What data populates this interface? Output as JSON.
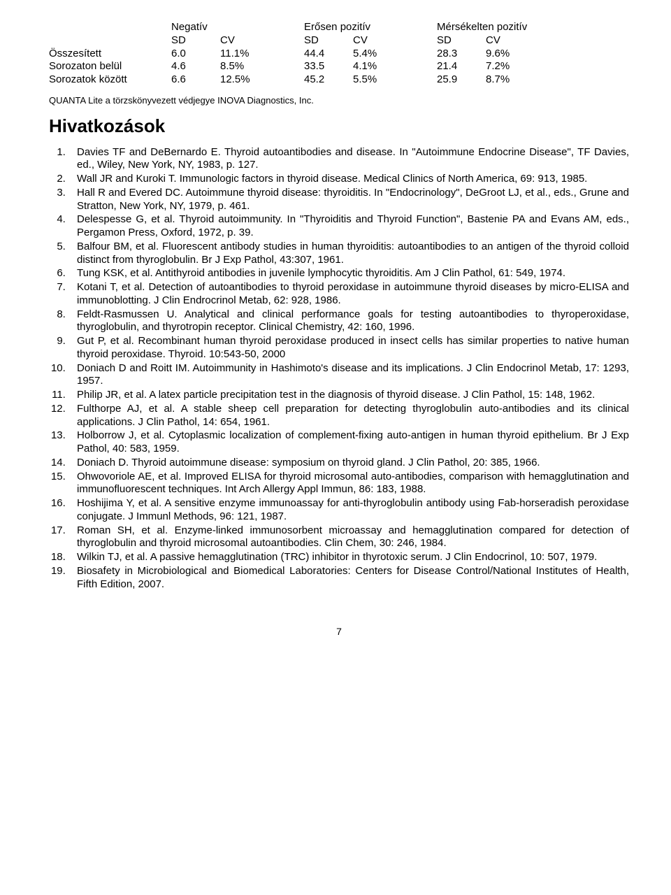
{
  "table": {
    "header_groups": [
      "Negatív",
      "Erősen pozitív",
      "Mérsékelten pozitív"
    ],
    "subheaders": [
      "SD",
      "CV",
      "SD",
      "CV",
      "SD",
      "CV"
    ],
    "rows": [
      {
        "label": "Összesített",
        "c": [
          "6.0",
          "11.1%",
          "44.4",
          "5.4%",
          "28.3",
          "9.6%"
        ]
      },
      {
        "label": "Sorozaton belül",
        "c": [
          "4.6",
          "8.5%",
          "33.5",
          "4.1%",
          "21.4",
          "7.2%"
        ]
      },
      {
        "label": "Sorozatok között",
        "c": [
          "6.6",
          "12.5%",
          "45.2",
          "5.5%",
          "25.9",
          "8.7%"
        ]
      }
    ]
  },
  "trademark": "QUANTA Lite a törzskönyvezett védjegye INOVA Diagnostics, Inc.",
  "refs_title": "Hivatkozások",
  "references": [
    "Davies TF and DeBernardo E. Thyroid autoantibodies and disease. In \"Autoimmune Endocrine Disease\", TF Davies, ed., Wiley, New York, NY, 1983, p. 127.",
    "Wall JR and Kuroki T. Immunologic factors in thyroid disease. Medical Clinics of North America, 69: 913, 1985.",
    "Hall R and Evered DC. Autoimmune thyroid disease: thyroiditis. In \"Endocrinology\", DeGroot LJ, et al., eds., Grune and Stratton, New York, NY, 1979, p. 461.",
    "Delespesse G, et al. Thyroid autoimmunity. In \"Thyroiditis and Thyroid Function\", Bastenie PA and Evans AM, eds., Pergamon Press, Oxford, 1972, p. 39.",
    "Balfour BM, et al. Fluorescent antibody studies in human thyroiditis: autoantibodies to an antigen of the thyroid colloid distinct from thyroglobulin. Br J Exp Pathol, 43:307, 1961.",
    "Tung KSK, et al. Antithyroid antibodies in juvenile lymphocytic thyroiditis. Am J Clin Pathol, 61: 549, 1974.",
    "Kotani T, et al. Detection of autoantibodies to thyroid peroxidase in autoimmune thyroid diseases by micro-ELISA and immunoblotting. J Clin Endrocrinol Metab, 62: 928, 1986.",
    "Feldt-Rasmussen U. Analytical and clinical performance goals for testing autoantibodies to thyroperoxidase, thyroglobulin, and thyrotropin receptor. Clinical Chemistry, 42: 160, 1996.",
    "Gut P, et al. Recombinant human thyroid peroxidase produced in insect cells has similar properties to native human thyroid peroxidase. Thyroid. 10:543-50, 2000",
    "Doniach D and Roitt IM. Autoimmunity in Hashimoto's disease and its implications. J Clin Endocrinol Metab, 17: 1293, 1957.",
    "Philip JR, et al. A latex particle precipitation test in the diagnosis of thyroid disease. J Clin Pathol, 15: 148, 1962.",
    "Fulthorpe AJ, et al. A stable sheep cell preparation for detecting thyroglobulin auto-antibodies and its clinical applications. J Clin Pathol, 14: 654, 1961.",
    "Holborrow J, et al. Cytoplasmic localization of complement-fixing auto-antigen in human thyroid epithelium. Br J Exp Pathol, 40: 583, 1959.",
    "Doniach D. Thyroid autoimmune disease: symposium on thyroid gland. J Clin Pathol, 20: 385, 1966.",
    "Ohwovoriole AE, et al. Improved ELISA for thyroid microsomal auto-antibodies, comparison with hemagglutination and immunofluorescent techniques. Int Arch Allergy Appl Immun, 86: 183, 1988.",
    "Hoshijima Y, et al. A sensitive enzyme immunoassay for anti-thyroglobulin antibody using Fab-horseradish peroxidase conjugate. J Immunl Methods, 96: 121, 1987.",
    "Roman SH, et al. Enzyme-linked immunosorbent microassay and hemagglutination compared for detection of thyroglobulin and thyroid microsomal autoantibodies. Clin Chem, 30: 246, 1984.",
    "Wilkin TJ, et al. A passive hemagglutination (TRC) inhibitor in thyrotoxic serum. J Clin Endocrinol, 10: 507, 1979.",
    "Biosafety in Microbiological and Biomedical Laboratories: Centers for Disease Control/National Institutes of Health, Fifth Edition, 2007."
  ],
  "page_number": "7"
}
